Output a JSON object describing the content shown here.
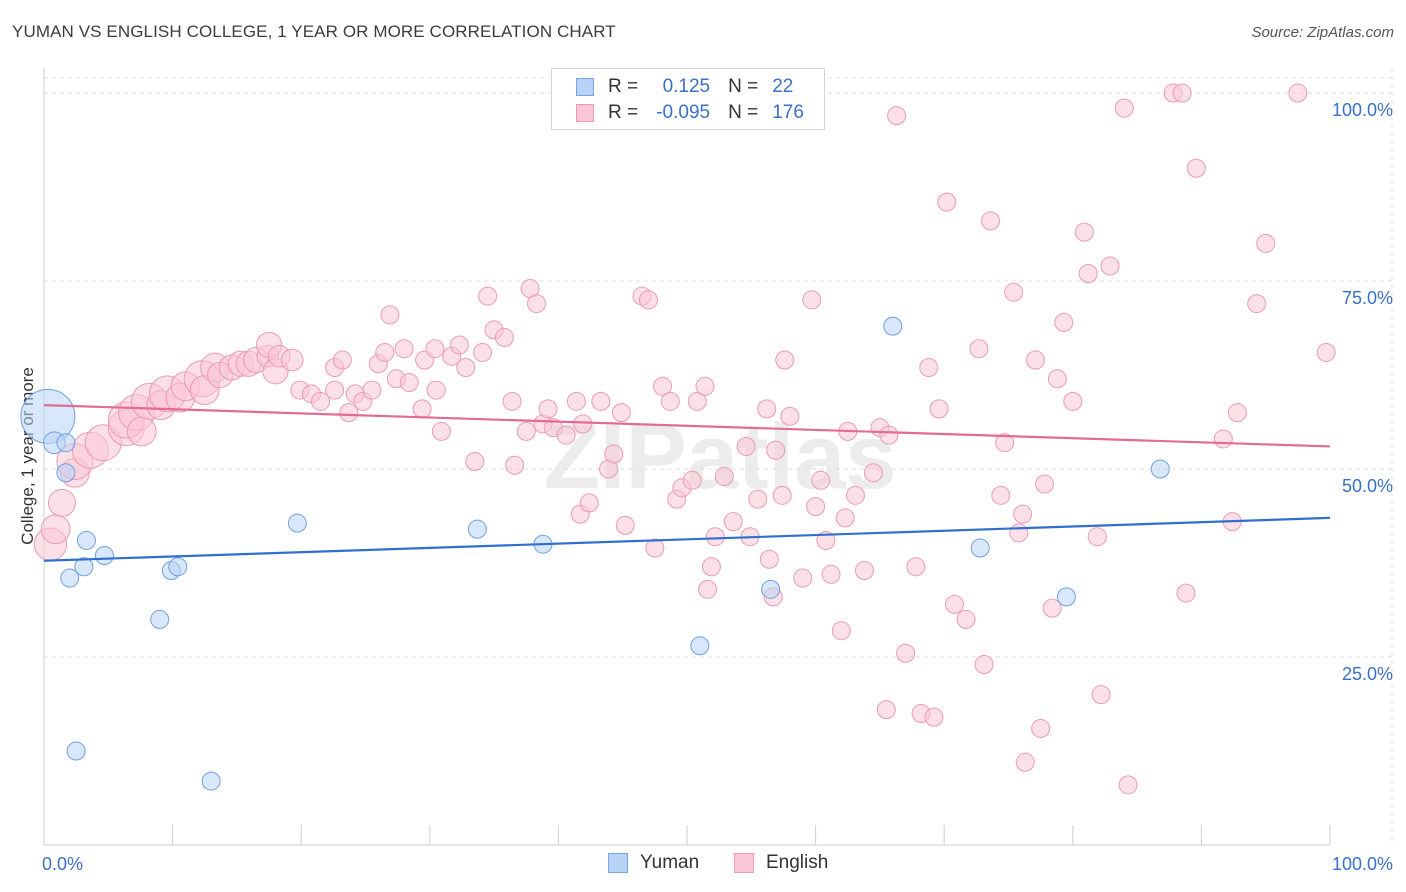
{
  "title": "YUMAN VS ENGLISH COLLEGE, 1 YEAR OR MORE CORRELATION CHART",
  "source": "Source: ZipAtlas.com",
  "watermark": "ZIPatlas",
  "legend": {
    "rows": [
      {
        "r_label": "R =",
        "r_value": "0.125",
        "n_label": "N =",
        "n_value": "22",
        "color": "#b9d3f7"
      },
      {
        "r_label": "R =",
        "r_value": "-0.095",
        "n_label": "N =",
        "n_value": "176",
        "color": "#f9c7d6"
      }
    ]
  },
  "bottom_legend": [
    {
      "label": "Yuman",
      "color": "#b9d3f7"
    },
    {
      "label": "English",
      "color": "#f9c7d6"
    }
  ],
  "chart_data": {
    "type": "scatter",
    "title": "YUMAN VS ENGLISH COLLEGE, 1 YEAR OR MORE CORRELATION CHART",
    "xlabel": "",
    "ylabel": "College, 1 year or more",
    "xlim": [
      0,
      100
    ],
    "ylim": [
      0,
      102
    ],
    "x_tick_labels": [
      {
        "value": 0,
        "label": "0.0%"
      },
      {
        "value": 100,
        "label": "100.0%"
      }
    ],
    "y_tick_labels": [
      {
        "value": 25,
        "label": "25.0%"
      },
      {
        "value": 50,
        "label": "50.0%"
      },
      {
        "value": 75,
        "label": "75.0%"
      },
      {
        "value": 100,
        "label": "100.0%"
      }
    ],
    "series": [
      {
        "name": "Yuman",
        "color": "#6fa0e0",
        "fill": "#b9d3f7",
        "trend": {
          "x0": 0,
          "y0": 37.8,
          "x1": 100,
          "y1": 43.5,
          "color": "#2f6fd0"
        },
        "points": [
          [
            0.3,
            57,
            3
          ],
          [
            0.8,
            53.5,
            1.2
          ],
          [
            1.7,
            53.5,
            1
          ],
          [
            1.7,
            49.5,
            1
          ],
          [
            2,
            35.5,
            1
          ],
          [
            2.5,
            12.5,
            1
          ],
          [
            3.1,
            37,
            1
          ],
          [
            3.3,
            40.5,
            1
          ],
          [
            4.7,
            38.5,
            1
          ],
          [
            9,
            30,
            1
          ],
          [
            9.9,
            36.5,
            1
          ],
          [
            10.4,
            37,
            1
          ],
          [
            13,
            8.5,
            1
          ],
          [
            19.7,
            42.8,
            1
          ],
          [
            33.7,
            42,
            1
          ],
          [
            38.8,
            40,
            1
          ],
          [
            51,
            26.5,
            1
          ],
          [
            56.5,
            34,
            1
          ],
          [
            66,
            69,
            1
          ],
          [
            72.8,
            39.5,
            1
          ],
          [
            79.5,
            33,
            1
          ],
          [
            86.8,
            50,
            1
          ]
        ]
      },
      {
        "name": "English",
        "color": "#ec9ab4",
        "fill": "#f9c7d6",
        "trend": {
          "x0": 0,
          "y0": 58.5,
          "x1": 100,
          "y1": 53,
          "color": "#e36b93"
        },
        "points": [
          [
            0.5,
            40,
            1.8
          ],
          [
            0.9,
            42,
            1.6
          ],
          [
            1.4,
            45.5,
            1.5
          ],
          [
            2.4,
            49.5,
            1.6
          ],
          [
            2.4,
            51,
            2
          ],
          [
            3.6,
            52.5,
            2
          ],
          [
            4.6,
            53.5,
            2
          ],
          [
            6.4,
            55.5,
            2
          ],
          [
            6.4,
            56.5,
            2
          ],
          [
            7.2,
            57.5,
            2
          ],
          [
            7.6,
            55,
            1.6
          ],
          [
            8.2,
            59,
            2
          ],
          [
            9.1,
            58.5,
            1.6
          ],
          [
            9.6,
            60,
            2
          ],
          [
            10.6,
            59.5,
            1.6
          ],
          [
            11,
            61,
            1.6
          ],
          [
            12.3,
            62,
            2
          ],
          [
            12.5,
            60.5,
            1.6
          ],
          [
            13.3,
            63.5,
            1.6
          ],
          [
            13.7,
            62.5,
            1.4
          ],
          [
            14.6,
            63.5,
            1.4
          ],
          [
            15.3,
            64,
            1.4
          ],
          [
            15.9,
            64,
            1.4
          ],
          [
            16.5,
            64.5,
            1.4
          ],
          [
            17.4,
            65,
            1.2
          ],
          [
            17.5,
            66.5,
            1.4
          ],
          [
            18,
            63,
            1.4
          ],
          [
            18.3,
            65,
            1.2
          ],
          [
            19.3,
            64.5,
            1.2
          ],
          [
            19.9,
            60.5,
            1
          ],
          [
            20.8,
            60,
            1
          ],
          [
            21.5,
            59,
            1
          ],
          [
            22.6,
            60.5,
            1
          ],
          [
            22.6,
            63.5,
            1
          ],
          [
            23.2,
            64.5,
            1
          ],
          [
            23.7,
            57.5,
            1
          ],
          [
            24.2,
            60,
            1
          ],
          [
            24.8,
            59,
            1
          ],
          [
            25.5,
            60.5,
            1
          ],
          [
            26,
            64,
            1
          ],
          [
            26.5,
            65.5,
            1
          ],
          [
            26.9,
            70.5,
            1
          ],
          [
            27.4,
            62,
            1
          ],
          [
            28,
            66,
            1
          ],
          [
            28.4,
            61.5,
            1
          ],
          [
            29.4,
            58,
            1
          ],
          [
            29.6,
            64.5,
            1
          ],
          [
            30.4,
            66,
            1
          ],
          [
            30.5,
            60.5,
            1
          ],
          [
            30.9,
            55,
            1
          ],
          [
            31.7,
            65,
            1
          ],
          [
            32.3,
            66.5,
            1
          ],
          [
            32.8,
            63.5,
            1
          ],
          [
            33.5,
            51,
            1
          ],
          [
            34.1,
            65.5,
            1
          ],
          [
            34.5,
            73,
            1
          ],
          [
            35,
            68.5,
            1
          ],
          [
            35.8,
            67.5,
            1
          ],
          [
            36.4,
            59,
            1
          ],
          [
            36.6,
            50.5,
            1
          ],
          [
            37.5,
            55,
            1
          ],
          [
            37.8,
            74,
            1
          ],
          [
            38.3,
            72,
            1
          ],
          [
            38.8,
            56,
            1
          ],
          [
            39.2,
            58,
            1
          ],
          [
            39.6,
            55.5,
            1
          ],
          [
            40.6,
            54.5,
            1
          ],
          [
            41.4,
            59,
            1
          ],
          [
            41.7,
            44,
            1
          ],
          [
            41.9,
            56,
            1
          ],
          [
            42.4,
            45.5,
            1
          ],
          [
            43.3,
            59,
            1
          ],
          [
            43.9,
            50,
            1
          ],
          [
            44.3,
            52,
            1
          ],
          [
            44.9,
            57.5,
            1
          ],
          [
            45.2,
            42.5,
            1
          ],
          [
            46.5,
            73,
            1
          ],
          [
            47,
            72.5,
            1
          ],
          [
            47.5,
            39.5,
            1
          ],
          [
            48.1,
            61,
            1
          ],
          [
            48.7,
            59,
            1
          ],
          [
            49.2,
            46,
            1
          ],
          [
            49.6,
            47.5,
            1
          ],
          [
            50.4,
            48.5,
            1
          ],
          [
            50.8,
            59,
            1
          ],
          [
            51.4,
            61,
            1
          ],
          [
            51.6,
            34,
            1
          ],
          [
            51.9,
            37,
            1
          ],
          [
            52.2,
            41,
            1
          ],
          [
            52.9,
            49,
            1
          ],
          [
            53.6,
            43,
            1
          ],
          [
            54.6,
            53,
            1
          ],
          [
            54.9,
            41,
            1
          ],
          [
            55.5,
            46,
            1
          ],
          [
            56.2,
            58,
            1
          ],
          [
            56.4,
            38,
            1
          ],
          [
            56.7,
            33,
            1
          ],
          [
            56.9,
            52.5,
            1
          ],
          [
            57.4,
            46.5,
            1
          ],
          [
            57.6,
            64.5,
            1
          ],
          [
            58,
            57,
            1
          ],
          [
            59,
            35.5,
            1
          ],
          [
            59.7,
            72.5,
            1
          ],
          [
            60,
            45,
            1
          ],
          [
            60.4,
            48.5,
            1
          ],
          [
            60.8,
            40.5,
            1
          ],
          [
            61.2,
            36,
            1
          ],
          [
            62,
            28.5,
            1
          ],
          [
            62.3,
            43.5,
            1
          ],
          [
            62.5,
            55,
            1
          ],
          [
            63.1,
            46.5,
            1
          ],
          [
            63.8,
            36.5,
            1
          ],
          [
            64.5,
            49.5,
            1
          ],
          [
            65,
            55.5,
            1
          ],
          [
            65.5,
            18,
            1
          ],
          [
            65.7,
            54.5,
            1
          ],
          [
            66.3,
            97,
            1
          ],
          [
            67,
            25.5,
            1
          ],
          [
            67.8,
            37,
            1
          ],
          [
            68.2,
            17.5,
            1
          ],
          [
            68.8,
            63.5,
            1
          ],
          [
            69.2,
            17,
            1
          ],
          [
            69.6,
            58,
            1
          ],
          [
            70.2,
            85.5,
            1
          ],
          [
            70.8,
            32,
            1
          ],
          [
            71.7,
            30,
            1
          ],
          [
            72.7,
            66,
            1
          ],
          [
            73.1,
            24,
            1
          ],
          [
            73.6,
            83,
            1
          ],
          [
            74.4,
            46.5,
            1
          ],
          [
            74.7,
            53.5,
            1
          ],
          [
            75.4,
            73.5,
            1
          ],
          [
            75.8,
            41.5,
            1
          ],
          [
            76.1,
            44,
            1
          ],
          [
            76.3,
            11,
            1
          ],
          [
            77.1,
            64.5,
            1
          ],
          [
            77.5,
            15.5,
            1
          ],
          [
            77.8,
            48,
            1
          ],
          [
            78.4,
            31.5,
            1
          ],
          [
            78.8,
            62,
            1
          ],
          [
            79.3,
            69.5,
            1
          ],
          [
            80,
            59,
            1
          ],
          [
            80.9,
            81.5,
            1
          ],
          [
            81.2,
            76,
            1
          ],
          [
            81.9,
            41,
            1
          ],
          [
            82.2,
            20,
            1
          ],
          [
            82.9,
            77,
            1
          ],
          [
            84,
            98,
            1
          ],
          [
            84.3,
            8,
            1
          ],
          [
            87.8,
            100,
            1
          ],
          [
            88.5,
            100,
            1
          ],
          [
            88.8,
            33.5,
            1
          ],
          [
            89.6,
            90,
            1
          ],
          [
            91.7,
            54,
            1
          ],
          [
            92.4,
            43,
            1
          ],
          [
            92.8,
            57.5,
            1
          ],
          [
            94.3,
            72,
            1
          ],
          [
            95,
            80,
            1
          ],
          [
            97.5,
            100,
            1
          ],
          [
            99.7,
            65.5,
            1
          ]
        ]
      }
    ]
  }
}
